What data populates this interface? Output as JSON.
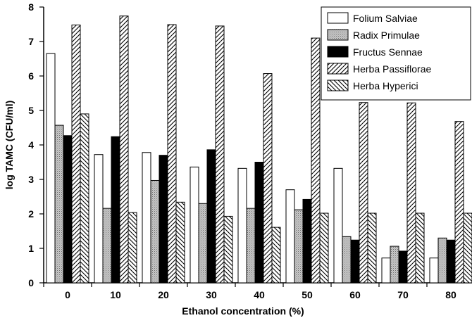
{
  "chart_data": {
    "type": "bar",
    "title": "",
    "xlabel": "Ethanol concentration (%)",
    "ylabel": "log TAMC (CFU/ml)",
    "categories": [
      "0",
      "10",
      "20",
      "30",
      "40",
      "50",
      "60",
      "70",
      "80"
    ],
    "ylim": [
      0,
      8
    ],
    "yticks": [
      "0",
      "1",
      "2",
      "3",
      "4",
      "5",
      "6",
      "7",
      "8"
    ],
    "legend_position": "top-right",
    "grid": false,
    "series": [
      {
        "name": "Folium Salviae",
        "pattern": "white",
        "values": [
          6.65,
          3.72,
          3.78,
          3.36,
          3.32,
          2.7,
          3.32,
          0.72,
          0.72
        ]
      },
      {
        "name": "Radix Primulae",
        "pattern": "dotted-gray",
        "values": [
          4.57,
          2.16,
          2.97,
          2.3,
          2.16,
          2.12,
          1.34,
          1.06,
          1.3
        ]
      },
      {
        "name": "Fructus Sennae",
        "pattern": "black",
        "values": [
          4.27,
          4.24,
          3.7,
          3.86,
          3.5,
          2.42,
          1.24,
          0.92,
          1.24
        ]
      },
      {
        "name": "Herba Passiflorae",
        "pattern": "forward-hatch",
        "values": [
          7.48,
          7.74,
          7.49,
          7.45,
          6.07,
          7.1,
          5.23,
          5.22,
          4.68
        ]
      },
      {
        "name": "Herba Hyperici",
        "pattern": "back-hatch",
        "values": [
          4.9,
          2.04,
          2.34,
          1.93,
          1.61,
          2.02,
          2.02,
          2.02,
          2.02
        ]
      }
    ]
  }
}
